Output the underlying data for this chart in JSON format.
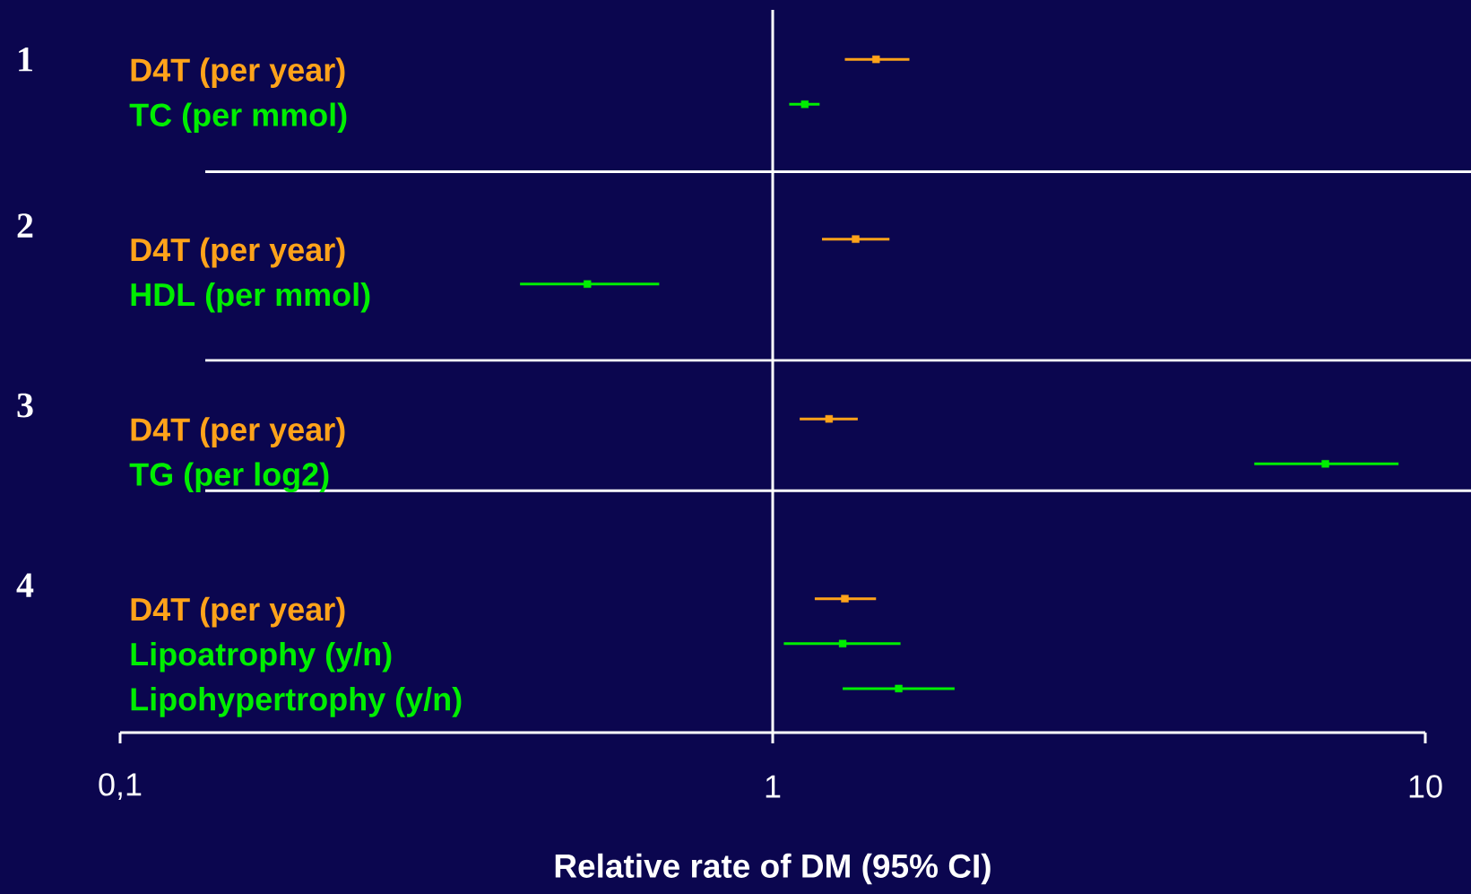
{
  "chart_data": {
    "type": "scatter",
    "orientation": "horizontal",
    "xlabel": "Relative rate of DM (95% CI)",
    "categories": [
      "D4T (per year)",
      "TC (per mmol)",
      null,
      null,
      "D4T (per year)",
      "HDL (per mmol)",
      null,
      null,
      "D4T (per year)",
      "TG (per log2)",
      null,
      null,
      "D4T (per year)",
      "Lipoatrophy (y/n)",
      "Lipohypertrophy (y/n)"
    ],
    "values": [
      1.44,
      1.12,
      null,
      null,
      1.34,
      0.52,
      null,
      null,
      1.22,
      7.03,
      null,
      null,
      1.29,
      1.28,
      1.56
    ],
    "errors": [
      [
        1.29,
        1.62
      ],
      [
        1.06,
        1.18
      ],
      null,
      null,
      [
        1.19,
        1.51
      ],
      [
        0.41,
        0.67
      ],
      null,
      null,
      [
        1.1,
        1.35
      ],
      [
        5.47,
        9.1
      ],
      null,
      null,
      [
        1.16,
        1.44
      ],
      [
        1.04,
        1.57
      ],
      [
        1.28,
        1.9
      ]
    ],
    "colors": [
      "#ffa31a",
      "#00ee00",
      null,
      null,
      "#ffa31a",
      "#00ee00",
      null,
      null,
      "#ffa31a",
      "#00ee00",
      null,
      null,
      "#ffa31a",
      "#00ee00",
      "#00ee00"
    ],
    "log": "x",
    "xlim": [
      0.1,
      10
    ],
    "xticks": [
      {
        "value": 0.1,
        "label": "0,1"
      },
      1,
      10
    ],
    "ref_lines": [
      {
        "axis": "x",
        "value": 1,
        "color": "#ffffff"
      }
    ],
    "annotations": [
      "1",
      "2",
      "3",
      "4"
    ],
    "marker": "square",
    "line_style": "solid"
  }
}
